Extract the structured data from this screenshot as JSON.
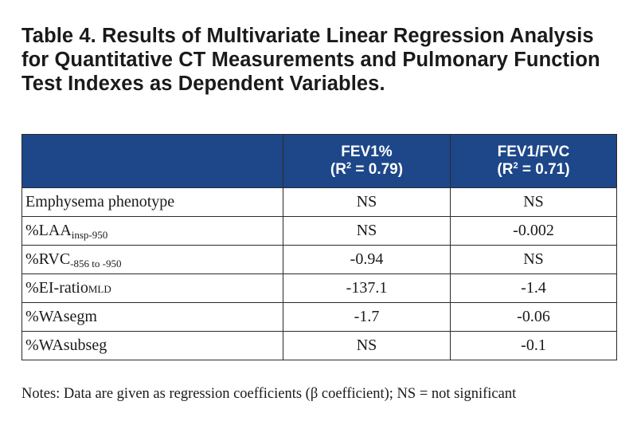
{
  "title": "Table 4. Results of Multivariate Linear Regression Analysis for Quantitative CT Measurements and Pulmonary Function Test Indexes as Dependent Variables.",
  "table": {
    "headers": [
      {
        "label": "",
        "r_prefix": "",
        "r_sup": "",
        "r_suffix": ""
      },
      {
        "label": "FEV1%",
        "r_prefix": "(R",
        "r_sup": "2",
        "r_suffix": " = 0.79)"
      },
      {
        "label": "FEV1/FVC",
        "r_prefix": "(R",
        "r_sup": "2",
        "r_suffix": " = 0.71)"
      }
    ],
    "rows": [
      {
        "label": "Emphysema phenotype",
        "label_sub": "",
        "fev1": "NS",
        "fev1_fvc": "NS"
      },
      {
        "label": "%LAA",
        "label_sub": "insp-950",
        "fev1": "NS",
        "fev1_fvc": "-0.002"
      },
      {
        "label": "%RVC",
        "label_sub": "-856 to -950",
        "fev1": "-0.94",
        "fev1_fvc": "NS"
      },
      {
        "label": "%EI-ratio",
        "label_sub": "MLD",
        "fev1": "-137.1",
        "fev1_fvc": "-1.4"
      },
      {
        "label": "%WAsegm",
        "label_sub": "",
        "fev1": "-1.7",
        "fev1_fvc": "-0.06"
      },
      {
        "label": "%WAsubseg",
        "label_sub": "",
        "fev1": "NS",
        "fev1_fvc": "-0.1"
      }
    ]
  },
  "notes": "Notes: Data are given as regression coefficients (β coefficient); NS =  not significant",
  "colors": {
    "header_bg": "#1d4789",
    "header_text": "#ffffff",
    "border": "#2a2a2a"
  }
}
